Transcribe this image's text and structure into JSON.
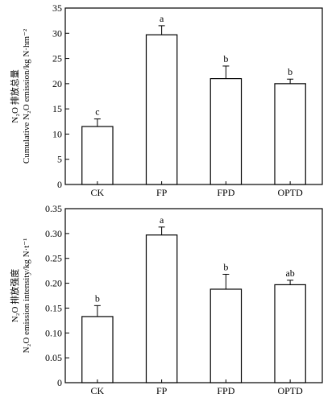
{
  "chart_data": [
    {
      "type": "bar",
      "categories": [
        "CK",
        "FP",
        "FPD",
        "OPTD"
      ],
      "values": [
        11.5,
        29.7,
        21.0,
        20.0
      ],
      "errors": [
        1.5,
        1.8,
        2.5,
        0.9
      ],
      "significance": [
        "c",
        "a",
        "b",
        "b"
      ],
      "ylabel_cn": "N₂O 排放总量",
      "ylabel_en": "Cumulative N₂O emission/kg N·hm⁻²",
      "ylim": [
        0,
        35
      ],
      "yticks": [
        "0",
        "5",
        "10",
        "15",
        "20",
        "25",
        "30",
        "35"
      ],
      "ytick_values": [
        0,
        5,
        10,
        15,
        20,
        25,
        30,
        35
      ],
      "grid": false,
      "bar_fill": "#ffffff",
      "bar_stroke": "#000000"
    },
    {
      "type": "bar",
      "categories": [
        "CK",
        "FP",
        "FPD",
        "OPTD"
      ],
      "values": [
        0.133,
        0.297,
        0.188,
        0.197
      ],
      "errors": [
        0.022,
        0.016,
        0.03,
        0.009
      ],
      "significance": [
        "b",
        "a",
        "b",
        "ab"
      ],
      "ylabel_cn": "N₂O 排放强度",
      "ylabel_en": "N₂O emission intensity/kg N·t⁻¹",
      "ylim": [
        0,
        0.35
      ],
      "yticks": [
        "0",
        "0.05",
        "0.10",
        "0.15",
        "0.20",
        "0.25",
        "0.30",
        "0.35"
      ],
      "ytick_values": [
        0,
        0.05,
        0.1,
        0.15,
        0.2,
        0.25,
        0.3,
        0.35
      ],
      "grid": false,
      "bar_fill": "#ffffff",
      "bar_stroke": "#000000"
    }
  ]
}
